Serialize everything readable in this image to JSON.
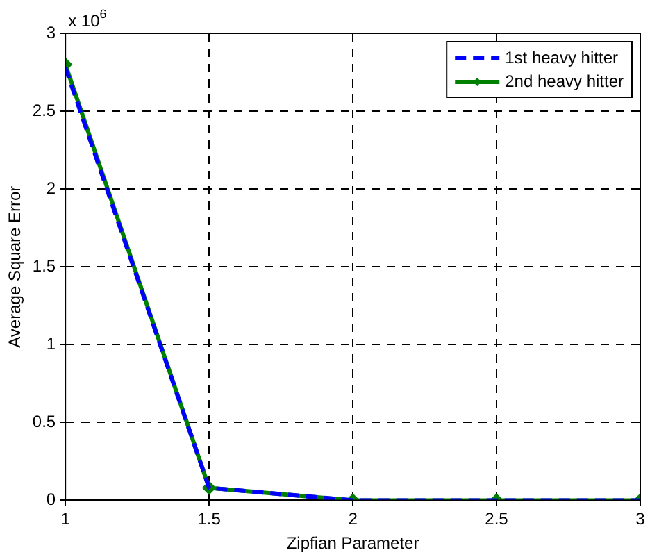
{
  "chart_data": {
    "type": "line",
    "xlabel": "Zipfian Parameter",
    "ylabel": "Average Square Error",
    "annotations": [
      "x 10$^{6}$"
    ],
    "x": [
      1,
      1.5,
      2,
      2.5,
      3
    ],
    "series": [
      {
        "name": "1st heavy hitter",
        "color": "#0000ff",
        "values": [
          2.78,
          0.08,
          0,
          0,
          0
        ],
        "line_style": "dashed",
        "marker": "none"
      },
      {
        "name": "2nd heavy hitter",
        "color": "#008000",
        "values": [
          2.8,
          0.08,
          0,
          0,
          0
        ],
        "line_style": "solid",
        "marker": "diamond"
      }
    ],
    "xlim": [
      1,
      3
    ],
    "xticks": [
      1,
      1.5,
      2,
      2.5,
      3
    ],
    "ylim": [
      0,
      3
    ],
    "yticks": [
      0,
      0.5,
      1,
      1.5,
      2,
      2.5,
      3
    ],
    "grid": true,
    "legend": "top right"
  }
}
